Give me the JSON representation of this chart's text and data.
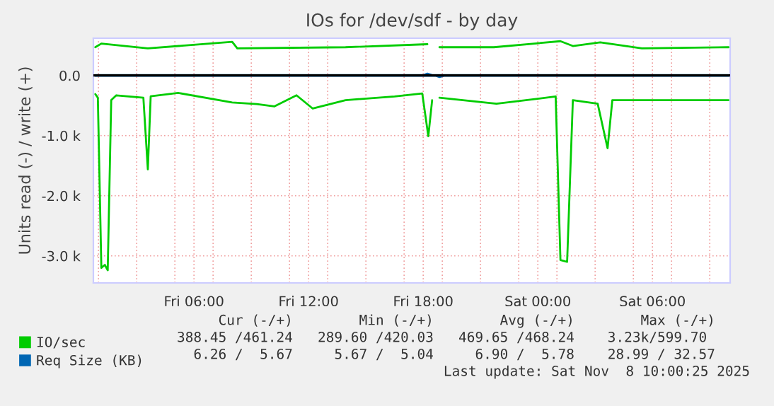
{
  "chart_data": {
    "type": "line",
    "title": "IOs for /dev/sdf - by day",
    "ylabel": "Units read (-) / write (+)",
    "xlim": [
      "2025-11-07T00:44",
      "2025-11-08T10:04"
    ],
    "xticks": [
      {
        "value": "2025-11-07T01:00",
        "label": null
      },
      {
        "value": "2025-11-07T03:00",
        "label": null
      },
      {
        "value": "2025-11-07T05:00",
        "label": null
      },
      {
        "value": "2025-11-07T06:00",
        "label": "Fri 06:00"
      },
      {
        "value": "2025-11-07T07:00",
        "label": null
      },
      {
        "value": "2025-11-07T09:00",
        "label": null
      },
      {
        "value": "2025-11-07T11:00",
        "label": null
      },
      {
        "value": "2025-11-07T12:00",
        "label": "Fri 12:00"
      },
      {
        "value": "2025-11-07T13:00",
        "label": null
      },
      {
        "value": "2025-11-07T15:00",
        "label": null
      },
      {
        "value": "2025-11-07T17:00",
        "label": null
      },
      {
        "value": "2025-11-07T18:00",
        "label": "Fri 18:00"
      },
      {
        "value": "2025-11-07T19:00",
        "label": null
      },
      {
        "value": "2025-11-07T21:00",
        "label": null
      },
      {
        "value": "2025-11-07T23:00",
        "label": null
      },
      {
        "value": "2025-11-08T00:00",
        "label": "Sat 00:00"
      },
      {
        "value": "2025-11-08T01:00",
        "label": null
      },
      {
        "value": "2025-11-08T03:00",
        "label": null
      },
      {
        "value": "2025-11-08T05:00",
        "label": null
      },
      {
        "value": "2025-11-08T06:00",
        "label": "Sat 06:00"
      },
      {
        "value": "2025-11-08T07:00",
        "label": null
      },
      {
        "value": "2025-11-08T09:00",
        "label": null
      }
    ],
    "ylim": [
      -3450,
      620
    ],
    "yticks": [
      {
        "value": -3000,
        "label": "-3.0 k"
      },
      {
        "value": -2000,
        "label": "-2.0 k"
      },
      {
        "value": -1000,
        "label": "-1.0 k"
      },
      {
        "value": 0,
        "label": "0.0"
      }
    ],
    "grid": true,
    "legend": "bottom left",
    "ref_lines": [
      {
        "axis": "y",
        "value": 0,
        "color": "#000000"
      }
    ],
    "series": [
      {
        "name": "IO/sec",
        "color": "#00cc00",
        "x": [
          "2025-11-07T00:50",
          "2025-11-07T01:09",
          "2025-11-07T03:35",
          "2025-11-07T08:00",
          "2025-11-07T08:16",
          "2025-11-07T13:56",
          "2025-11-07T18:13",
          "2025-11-07T18:28",
          "2025-11-07T18:51",
          "2025-11-07T21:42",
          "2025-11-08T01:11",
          "2025-11-08T01:50",
          "2025-11-08T03:16",
          "2025-11-08T05:27",
          "2025-11-08T09:59"
        ],
        "values": [
          470,
          530,
          450,
          560,
          450,
          470,
          520,
          null,
          470,
          470,
          570,
          490,
          550,
          450,
          470
        ]
      },
      {
        "color": "#00cc00",
        "x": [
          "2025-11-07T00:50",
          "2025-11-07T00:58",
          "2025-11-07T01:09",
          "2025-11-07T01:20",
          "2025-11-07T01:29",
          "2025-11-07T01:40",
          "2025-11-07T01:56",
          "2025-11-07T03:21",
          "2025-11-07T03:35",
          "2025-11-07T03:44",
          "2025-11-07T05:10",
          "2025-11-07T08:00",
          "2025-11-07T09:17",
          "2025-11-07T10:12",
          "2025-11-07T11:22",
          "2025-11-07T12:13",
          "2025-11-07T13:56",
          "2025-11-07T16:30",
          "2025-11-07T17:57",
          "2025-11-07T18:16",
          "2025-11-07T18:28",
          "2025-11-07T18:40",
          "2025-11-07T18:51",
          "2025-11-07T21:50",
          "2025-11-08T00:56",
          "2025-11-08T01:11",
          "2025-11-08T01:32",
          "2025-11-08T01:50",
          "2025-11-08T03:08",
          "2025-11-08T03:39",
          "2025-11-08T03:54",
          "2025-11-08T06:44",
          "2025-11-08T09:59"
        ],
        "values": [
          -310,
          -370,
          -3200,
          -3150,
          -3240,
          -410,
          -330,
          -370,
          -1560,
          -345,
          -290,
          -450,
          -475,
          -515,
          -330,
          -550,
          -410,
          -350,
          -300,
          -1010,
          -410,
          null,
          -370,
          -470,
          -350,
          -3070,
          -3100,
          -410,
          -470,
          -1210,
          -410,
          -410,
          -410
        ]
      },
      {
        "name": "Req Size (KB)",
        "color": "#0066b3",
        "x": [
          "2025-11-07T00:50",
          "2025-11-07T18:00",
          "2025-11-07T18:13",
          "2025-11-07T18:28",
          "2025-11-08T09:59"
        ],
        "values": [
          6,
          6,
          30,
          6,
          6
        ]
      },
      {
        "color": "#0066b3",
        "x": [
          "2025-11-07T00:50",
          "2025-11-07T18:40",
          "2025-11-07T18:51",
          "2025-11-07T19:05",
          "2025-11-08T09:59"
        ],
        "values": [
          -6,
          -6,
          -25,
          -6,
          -6
        ]
      }
    ],
    "annotations": [
      "     Cur (-/+)        Min (-/+)        Avg (-/+)        Max (-/+)",
      "388.45 /461.24   289.60 /420.03   469.65 /468.24    3.23k/599.70",
      "  6.26 /  5.67     5.67 /  5.04     6.90 /  5.78    28.99 / 32.57",
      "Last update: Sat Nov  8 10:00:25 2025"
    ]
  }
}
